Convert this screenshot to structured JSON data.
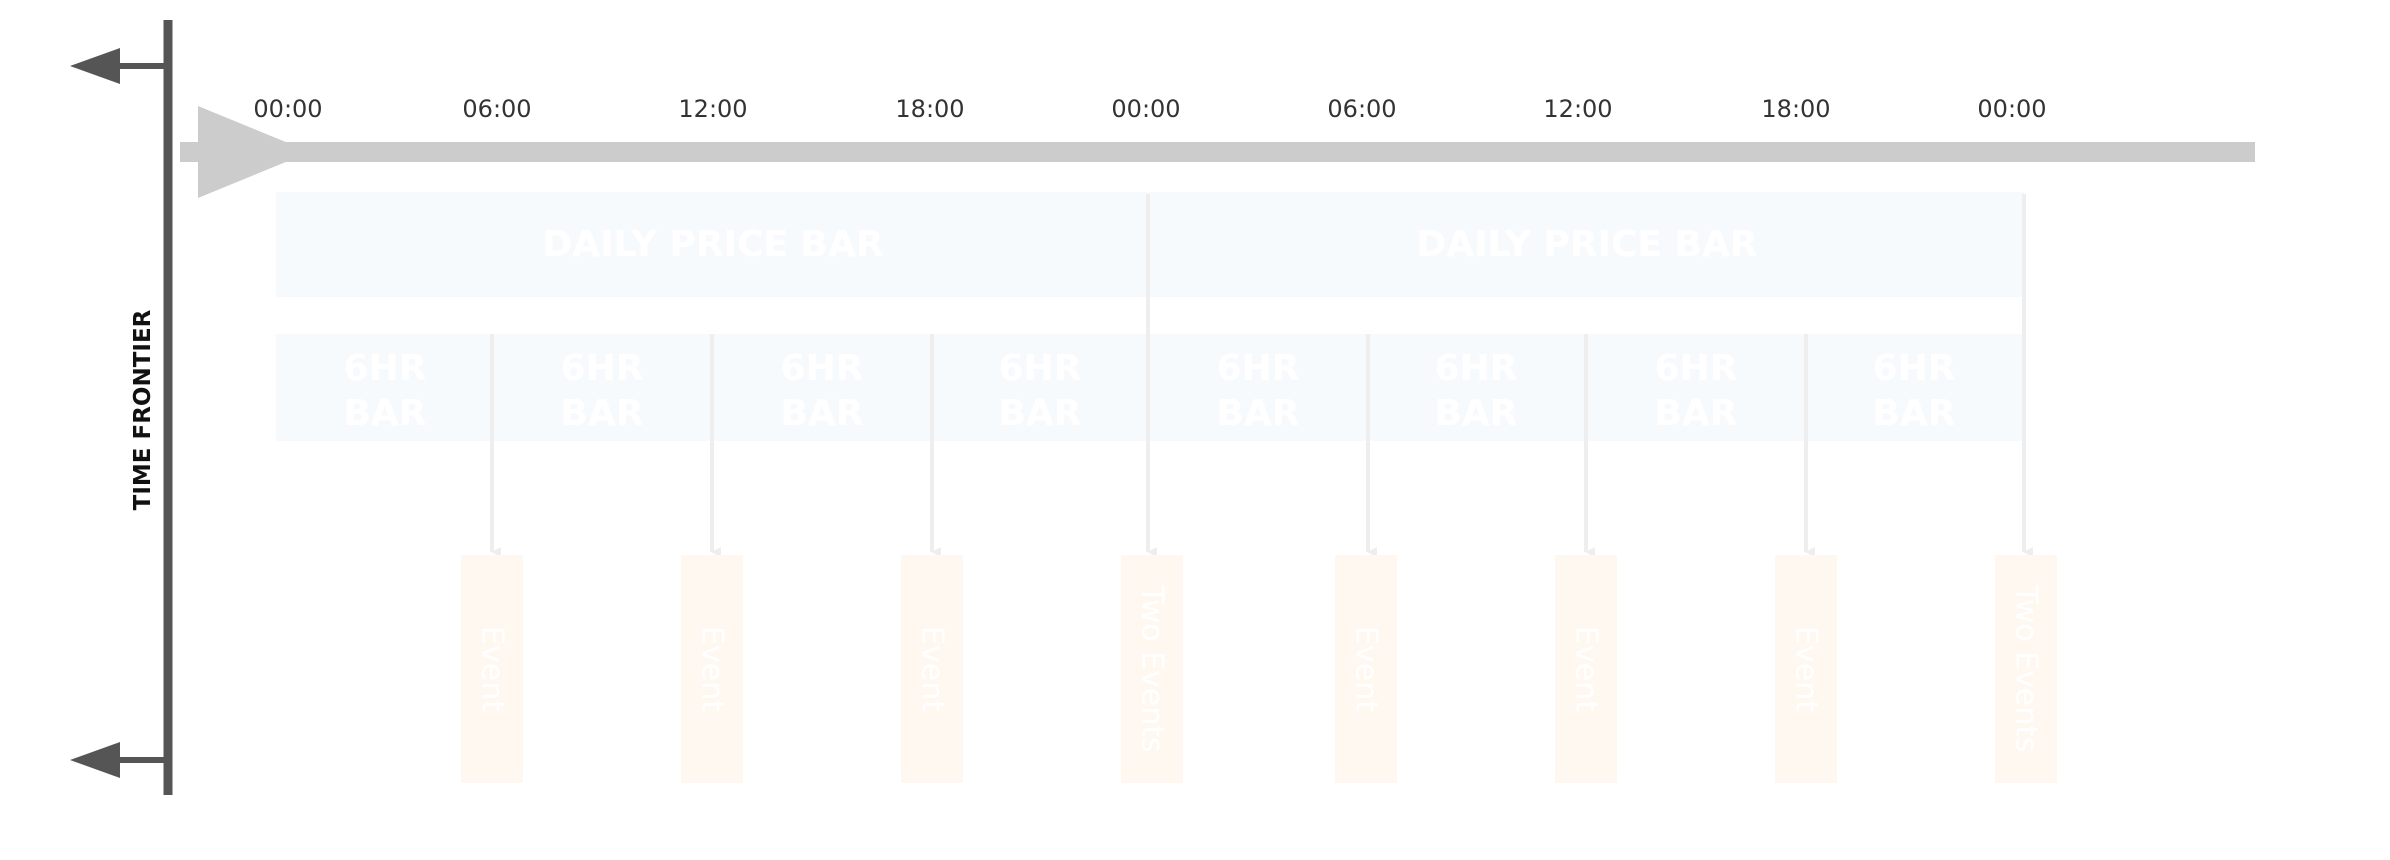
{
  "frontier": {
    "label": "TIME FRONTIER"
  },
  "timeline": {
    "ticks": [
      "00:00",
      "06:00",
      "12:00",
      "18:00",
      "00:00",
      "06:00",
      "12:00",
      "18:00",
      "00:00"
    ]
  },
  "daily_bars": [
    {
      "label": "DAILY PRICE BAR"
    },
    {
      "label": "DAILY PRICE BAR"
    }
  ],
  "sixhr_bars": [
    {
      "line1": "6HR",
      "line2": "BAR"
    },
    {
      "line1": "6HR",
      "line2": "BAR"
    },
    {
      "line1": "6HR",
      "line2": "BAR"
    },
    {
      "line1": "6HR",
      "line2": "BAR"
    },
    {
      "line1": "6HR",
      "line2": "BAR"
    },
    {
      "line1": "6HR",
      "line2": "BAR"
    },
    {
      "line1": "6HR",
      "line2": "BAR"
    },
    {
      "line1": "6HR",
      "line2": "BAR"
    }
  ],
  "events": [
    {
      "label": "Event"
    },
    {
      "label": "Event"
    },
    {
      "label": "Event"
    },
    {
      "label": "Two Events"
    },
    {
      "label": "Event"
    },
    {
      "label": "Event"
    },
    {
      "label": "Event"
    },
    {
      "label": "Two Events"
    }
  ],
  "colors": {
    "frontier": "#555555",
    "timeline": "#cccccc",
    "tick_text": "#333333",
    "bar_fill": "#f7fafd",
    "bar_text": "#ffffff",
    "connector": "#eeeeee",
    "event_fill": "#fff8f1",
    "event_text": "#ffffff"
  }
}
